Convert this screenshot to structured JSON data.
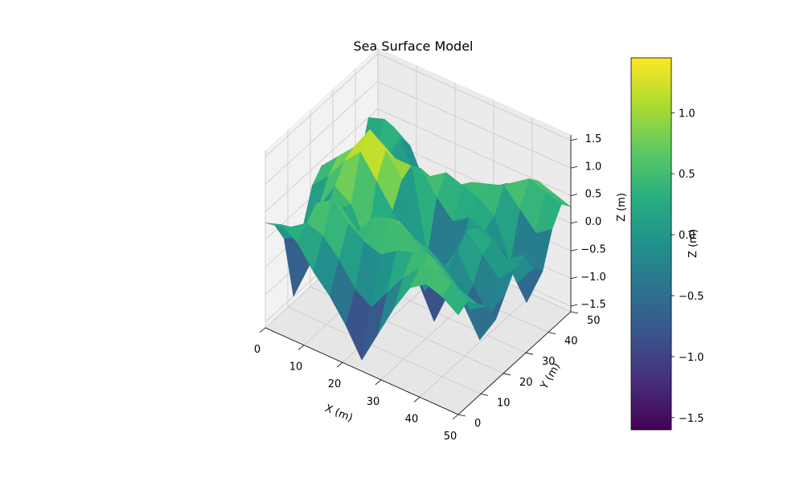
{
  "chart_data": {
    "type": "surface3d",
    "title": "Sea Surface Model",
    "xlabel": "X (m)",
    "ylabel": "Y (m)",
    "zlabel": "Z (m)",
    "colorbar_label": "Z (m)",
    "colormap": "viridis",
    "xlim": [
      0,
      50
    ],
    "ylim": [
      0,
      50
    ],
    "zlim": [
      -1.6,
      1.6
    ],
    "x_ticks": [
      "0",
      "10",
      "20",
      "30",
      "40",
      "50"
    ],
    "y_ticks": [
      "0",
      "10",
      "20",
      "30",
      "40",
      "50"
    ],
    "z_ticks": [
      "−1.5",
      "−1.0",
      "−0.5",
      "0.0",
      "0.5",
      "1.0",
      "1.5"
    ],
    "colorbar_ticks": [
      "−1.5",
      "−1.0",
      "−0.5",
      "0.0",
      "0.5",
      "1.0"
    ],
    "colorbar_range": [
      -1.6,
      1.45
    ],
    "surface_z_estimated": [
      [
        0.3,
        0.1,
        -0.3,
        -1.5,
        -0.4,
        0.2,
        0.4,
        0.2,
        -0.3,
        -1.3,
        -0.2,
        0.5,
        0.2
      ],
      [
        0.4,
        0.2,
        -0.1,
        -0.8,
        0.1,
        0.5,
        0.7,
        0.5,
        0.0,
        -0.7,
        0.1,
        0.6,
        0.3
      ],
      [
        0.2,
        0.4,
        0.6,
        0.3,
        0.6,
        0.9,
        1.0,
        0.8,
        0.4,
        0.0,
        0.3,
        0.4,
        0.1
      ],
      [
        -0.2,
        0.3,
        0.8,
        0.5,
        0.4,
        1.2,
        1.45,
        1.1,
        0.6,
        0.2,
        0.0,
        -0.3,
        -0.5
      ],
      [
        -0.5,
        0.0,
        0.5,
        0.2,
        -0.2,
        0.8,
        1.2,
        0.9,
        0.5,
        0.3,
        -0.2,
        -0.8,
        -1.2
      ],
      [
        -0.9,
        -0.4,
        0.3,
        0.6,
        0.1,
        0.4,
        0.8,
        0.9,
        0.7,
        0.4,
        0.0,
        -0.6,
        -0.9
      ],
      [
        -1.4,
        -0.6,
        0.2,
        0.7,
        0.5,
        -0.2,
        -0.9,
        -0.6,
        0.3,
        0.6,
        0.2,
        -0.2,
        -0.4
      ],
      [
        -0.8,
        -0.2,
        0.4,
        0.6,
        0.3,
        -0.8,
        -1.5,
        -1.1,
        0.0,
        0.5,
        0.4,
        0.1,
        0.0
      ],
      [
        -0.2,
        0.2,
        0.5,
        0.4,
        0.2,
        -0.3,
        -0.8,
        -0.4,
        0.2,
        0.4,
        0.5,
        0.3,
        0.2
      ],
      [
        0.3,
        0.5,
        0.6,
        0.3,
        0.0,
        0.2,
        0.4,
        0.3,
        0.1,
        0.2,
        0.6,
        0.5,
        0.3
      ],
      [
        0.5,
        0.6,
        0.4,
        0.1,
        -0.5,
        -0.3,
        0.1,
        0.2,
        -0.1,
        -0.5,
        0.3,
        0.7,
        0.5
      ],
      [
        0.4,
        0.5,
        0.2,
        -0.3,
        -1.0,
        -0.7,
        -0.2,
        0.0,
        -0.6,
        -1.1,
        0.0,
        0.6,
        0.4
      ],
      [
        0.2,
        0.3,
        0.1,
        -0.1,
        -0.5,
        -0.2,
        0.1,
        0.2,
        -0.2,
        -0.4,
        0.2,
        0.5,
        0.3
      ]
    ]
  }
}
